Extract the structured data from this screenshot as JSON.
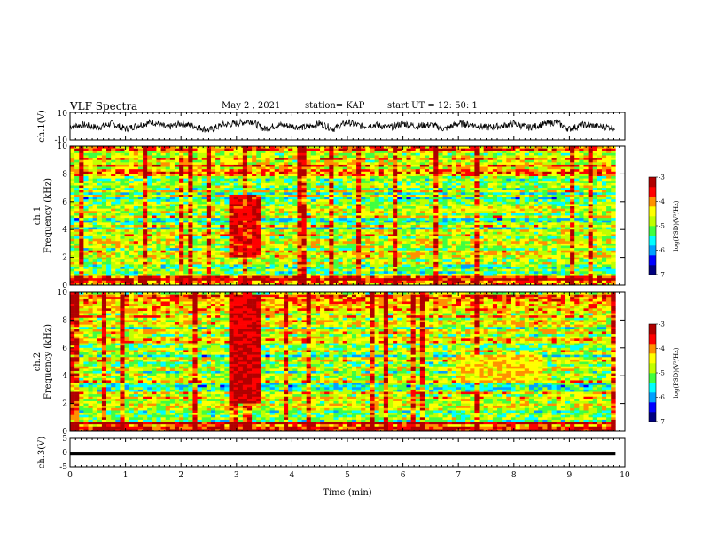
{
  "header": {
    "title": "VLF Spectra",
    "date": "May 2 , 2021",
    "station": "station= KAP",
    "start": "start UT = 12: 50: 1"
  },
  "chart_data": [
    {
      "type": "line",
      "id": "ch1-voltage",
      "ylabel": "ch.1(V)",
      "ylim": [
        -10,
        10
      ],
      "yticks": [
        "10",
        "-10"
      ],
      "xlim": [
        0,
        10
      ],
      "color": "#000000",
      "description_values": "noisy trace centred near 0 V, amplitude about ±5 V",
      "x": [
        0,
        0.25,
        0.5,
        0.75,
        1,
        1.25,
        1.5,
        1.75,
        2,
        2.25,
        2.5,
        2.75,
        3,
        3.25,
        3.5,
        3.75,
        4,
        4.25,
        4.5,
        4.75,
        5,
        5.25,
        5.5,
        5.75,
        6,
        6.25,
        6.5,
        6.75,
        7,
        7.25,
        7.5,
        7.75,
        8,
        8.25,
        8.5,
        8.75,
        9,
        9.25,
        9.5,
        9.83
      ],
      "y": [
        0,
        1,
        -1,
        2,
        -2,
        1,
        3,
        -1,
        2,
        0,
        -3,
        1,
        2,
        4,
        -2,
        1,
        0,
        -1,
        2,
        -2,
        3,
        0,
        1,
        -1,
        2,
        0,
        1,
        -2,
        2,
        1,
        -1,
        0,
        2,
        -1,
        1,
        3,
        -2,
        1,
        0,
        -1
      ]
    },
    {
      "type": "heatmap",
      "id": "ch1-spectrogram",
      "ylabel_line1": "ch.1",
      "ylabel_line2": "Frequency (kHz)",
      "ylim": [
        0,
        10
      ],
      "yticks": [
        "0",
        "2",
        "4",
        "6",
        "8",
        "10"
      ],
      "xlim": [
        0,
        9.83
      ],
      "zlim": [
        -7,
        -3
      ],
      "colorbar_label": "log(PSD)(V²/Hz)",
      "colorbar_ticks": [
        "-3",
        "-4",
        "-5",
        "-6",
        "-7"
      ],
      "colormap": [
        "#00007f",
        "#0000ff",
        "#00a0ff",
        "#00ffff",
        "#40ff40",
        "#c0ff00",
        "#ffff00",
        "#ff9000",
        "#ff0000",
        "#b00000"
      ],
      "features": [
        {
          "x_from": 2.85,
          "x_to": 3.45,
          "f_from": 2,
          "f_to": 6.5,
          "level": -3.5
        },
        {
          "x_from": 7.0,
          "x_to": 8.5,
          "f_from": 5.2,
          "f_to": 5.6,
          "level": -4.5
        }
      ]
    },
    {
      "type": "heatmap",
      "id": "ch2-spectrogram",
      "ylabel_line1": "ch.2",
      "ylabel_line2": "Frequency (kHz)",
      "ylim": [
        0,
        10
      ],
      "yticks": [
        "0",
        "2",
        "4",
        "6",
        "8",
        "10"
      ],
      "xlim": [
        0,
        9.83
      ],
      "zlim": [
        -7,
        -3
      ],
      "colorbar_label": "log(PSD)(V²/Hz)",
      "colorbar_ticks": [
        "-3",
        "-4",
        "-5",
        "-6",
        "-7"
      ],
      "features": [
        {
          "x_from": 2.85,
          "x_to": 3.45,
          "f_from": 2,
          "f_to": 9.8,
          "level": -3.4
        },
        {
          "x_from": 7.0,
          "x_to": 8.5,
          "f_from": 3.5,
          "f_to": 5.5,
          "level": -4.3
        }
      ]
    },
    {
      "type": "line",
      "id": "ch3-voltage",
      "ylabel": "ch.3(V)",
      "ylim": [
        -5,
        5
      ],
      "yticks": [
        "5",
        "0",
        "-5"
      ],
      "xlim": [
        0,
        10
      ],
      "xlabel": "Time (min)",
      "xticks": [
        "0",
        "1",
        "2",
        "3",
        "4",
        "5",
        "6",
        "7",
        "8",
        "9",
        "10"
      ],
      "band": {
        "x_from": 0,
        "x_to": 9.83,
        "y_from": -1,
        "y_to": 0.3
      }
    }
  ]
}
